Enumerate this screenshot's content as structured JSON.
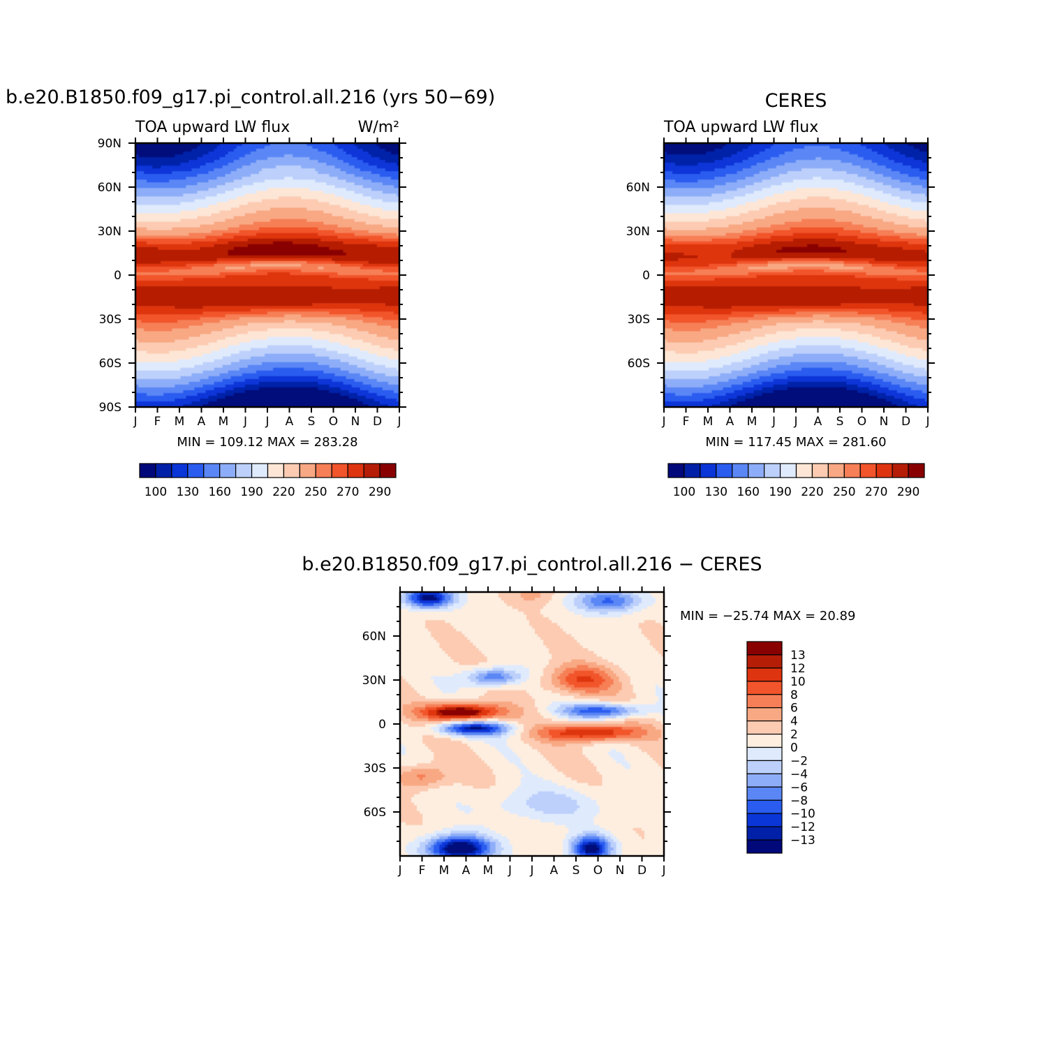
{
  "palette": {
    "abs": [
      "#00087a",
      "#0020a8",
      "#0a36d8",
      "#2a5cf0",
      "#5a87f5",
      "#8eadf8",
      "#bcd0fb",
      "#dfeafd",
      "#fde6d5",
      "#fccbb2",
      "#f8a883",
      "#f67f57",
      "#f2542b",
      "#de3410",
      "#b51d06",
      "#890000"
    ],
    "diff": [
      "#00087a",
      "#0020a8",
      "#0a36d8",
      "#2a5cf0",
      "#5a87f5",
      "#8eadf8",
      "#bcd0fb",
      "#dfeafd",
      "#fdeee0",
      "#fccbb2",
      "#f8a883",
      "#f67f57",
      "#f2542b",
      "#de3410",
      "#b51d06",
      "#890000"
    ]
  },
  "chart_data": [
    {
      "id": "model",
      "type": "heatmap",
      "title": "b.e20.B1850.f09_g17.pi_control.all.216 (yrs 50−69)",
      "left_string": "TOA upward LW flux",
      "right_string": "W/m²",
      "stats": "MIN =  109.12  MAX =  283.28",
      "x_tick_labels": [
        "J",
        "F",
        "M",
        "A",
        "M",
        "J",
        "J",
        "A",
        "S",
        "O",
        "N",
        "D",
        "J"
      ],
      "y_range": [
        -90,
        90
      ],
      "y_ticks": [
        {
          "value": 90,
          "label": "90N"
        },
        {
          "value": 60,
          "label": "60N"
        },
        {
          "value": 30,
          "label": "30N"
        },
        {
          "value": 0,
          "label": "0"
        },
        {
          "value": -30,
          "label": "30S"
        },
        {
          "value": -60,
          "label": "60S"
        },
        {
          "value": -90,
          "label": "90S"
        }
      ],
      "levels": [
        100,
        115,
        130,
        145,
        160,
        175,
        190,
        205,
        220,
        235,
        250,
        260,
        270,
        280,
        290
      ],
      "colorbar_labels": [
        "100",
        "130",
        "160",
        "190",
        "220",
        "250",
        "270",
        "290"
      ]
    },
    {
      "id": "obs",
      "type": "heatmap",
      "title": "CERES",
      "left_string": "TOA upward LW flux",
      "right_string": "",
      "stats": "MIN =  117.45  MAX =  281.60",
      "x_tick_labels": [
        "J",
        "F",
        "M",
        "A",
        "M",
        "J",
        "J",
        "A",
        "S",
        "O",
        "N",
        "D",
        "J"
      ],
      "y_range": [
        -90,
        90
      ],
      "y_ticks": [
        {
          "value": 60,
          "label": "60N"
        },
        {
          "value": 30,
          "label": "30N"
        },
        {
          "value": 0,
          "label": "0"
        },
        {
          "value": -30,
          "label": "30S"
        },
        {
          "value": -60,
          "label": "60S"
        }
      ],
      "levels": [
        100,
        115,
        130,
        145,
        160,
        175,
        190,
        205,
        220,
        235,
        250,
        260,
        270,
        280,
        290
      ],
      "colorbar_labels": [
        "100",
        "130",
        "160",
        "190",
        "220",
        "250",
        "270",
        "290"
      ]
    },
    {
      "id": "diff",
      "type": "heatmap",
      "title": "b.e20.B1850.f09_g17.pi_control.all.216 − CERES",
      "left_string": "",
      "right_string": "",
      "stats": "MIN = −25.74  MAX =   20.89",
      "x_tick_labels": [
        "J",
        "F",
        "M",
        "A",
        "M",
        "J",
        "J",
        "A",
        "S",
        "O",
        "N",
        "D",
        "J"
      ],
      "y_range": [
        -90,
        90
      ],
      "y_ticks": [
        {
          "value": 60,
          "label": "60N"
        },
        {
          "value": 30,
          "label": "30N"
        },
        {
          "value": 0,
          "label": "0"
        },
        {
          "value": -30,
          "label": "30S"
        },
        {
          "value": -60,
          "label": "60S"
        }
      ],
      "levels": [
        -13,
        -12,
        -10,
        -8,
        -6,
        -4,
        -2,
        0,
        2,
        4,
        6,
        8,
        10,
        12,
        13
      ],
      "colorbar_labels": [
        "13",
        "12",
        "10",
        "8",
        "6",
        "4",
        "2",
        "0",
        "−2",
        "−4",
        "−6",
        "−8",
        "−10",
        "−12",
        "−13"
      ]
    }
  ]
}
